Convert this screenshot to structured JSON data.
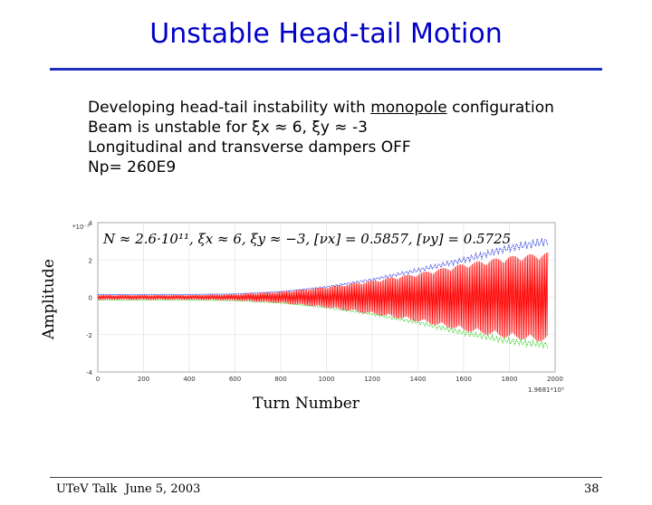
{
  "slide": {
    "title": "Unstable Head-tail Motion",
    "bullets": {
      "line1_pre": "Developing head-tail instability with ",
      "line1_u": "monopole",
      "line1_post": " configuration",
      "line2": "Beam is unstable for ξx ≈ 6, ξy ≈ -3",
      "line3": "Longitudinal and transverse dampers OFF",
      "line4": "Np= 260E9"
    },
    "footer": {
      "left": "UTeV Talk",
      "date": "June 5, 2003",
      "page": "38"
    }
  },
  "chart_data": {
    "type": "line",
    "title": "N ≈ 2.6·10¹¹, ξx ≈ 6, ξy ≈ −3, [νx] = 0.5857, [νy] = 0.5725",
    "xlabel": "Turn Number",
    "ylabel": "Amplitude",
    "xlim": [
      0,
      2000
    ],
    "ylim": [
      -4,
      4
    ],
    "y_multiplier_label": "*10⁻³",
    "x_multiplier_label": "1.9681*10³",
    "x_ticks": [
      0,
      200,
      400,
      600,
      800,
      1000,
      1200,
      1400,
      1600,
      1800,
      2000
    ],
    "y_ticks": [
      -4,
      -2,
      0,
      2,
      4
    ],
    "grid": true,
    "series": [
      {
        "color": "#2233dd",
        "role": "upper envelope",
        "x": [
          0,
          200,
          400,
          600,
          800,
          1000,
          1200,
          1400,
          1600,
          1800,
          1968
        ],
        "values": [
          0.15,
          0.15,
          0.15,
          0.18,
          0.3,
          0.55,
          0.95,
          1.45,
          2.0,
          2.65,
          3.0
        ]
      },
      {
        "color": "#ff0000",
        "role": "amplitude",
        "x": [
          0,
          200,
          400,
          600,
          800,
          1000,
          1200,
          1400,
          1600,
          1800,
          1968
        ],
        "values": [
          0.12,
          0.12,
          0.12,
          0.16,
          0.3,
          0.55,
          0.9,
          1.3,
          1.8,
          2.2,
          2.4
        ]
      },
      {
        "color": "#33cc22",
        "role": "lower envelope",
        "x": [
          0,
          200,
          400,
          600,
          800,
          1000,
          1200,
          1400,
          1600,
          1800,
          1968
        ],
        "values": [
          -0.15,
          -0.15,
          -0.15,
          -0.18,
          -0.3,
          -0.55,
          -0.9,
          -1.35,
          -1.9,
          -2.35,
          -2.55
        ]
      }
    ]
  }
}
